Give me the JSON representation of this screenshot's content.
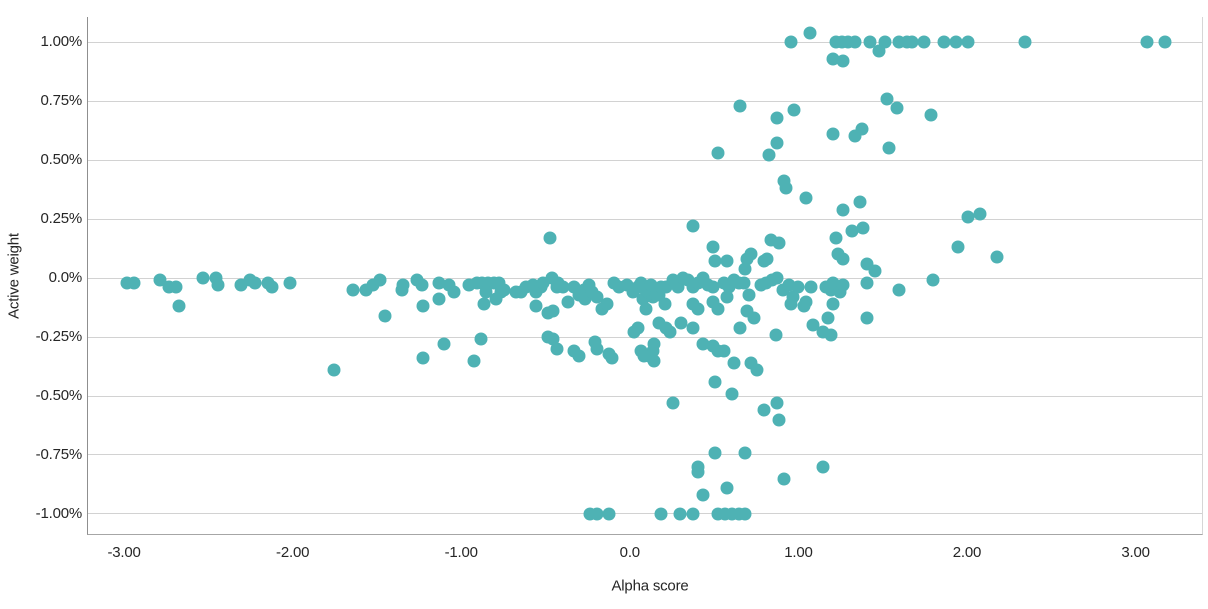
{
  "chart_data": {
    "type": "scatter",
    "title": "",
    "xlabel": "Alpha score",
    "ylabel": "Active weight",
    "xlim": [
      -3.22,
      3.4
    ],
    "ylim": [
      -1.089,
      1.106
    ],
    "grid": "horizontal-only",
    "legend": "none",
    "marker_color": "#4eb2b4",
    "marker_diameter_px": 13,
    "x_ticks": [
      {
        "value": -3,
        "label": "-3.00"
      },
      {
        "value": -2,
        "label": "-2.00"
      },
      {
        "value": -1,
        "label": "-1.00"
      },
      {
        "value": 0,
        "label": "0.0"
      },
      {
        "value": 1,
        "label": "1.00"
      },
      {
        "value": 2,
        "label": "2.00"
      },
      {
        "value": 3,
        "label": "3.00"
      }
    ],
    "y_ticks": [
      {
        "value": 1.0,
        "label": "1.00%"
      },
      {
        "value": 0.75,
        "label": "0.75%"
      },
      {
        "value": 0.5,
        "label": "0.50%"
      },
      {
        "value": 0.25,
        "label": "0.25%"
      },
      {
        "value": 0.0,
        "label": "0.0%"
      },
      {
        "value": -0.25,
        "label": "-0.25%"
      },
      {
        "value": -0.5,
        "label": "-0.50%"
      },
      {
        "value": -0.75,
        "label": "-0.75%"
      },
      {
        "value": -1.0,
        "label": "-1.00%"
      }
    ],
    "points": [
      [
        1.06,
        1.04
      ],
      [
        0.95,
        1.0
      ],
      [
        1.22,
        1.0
      ],
      [
        1.25,
        1.0
      ],
      [
        1.29,
        1.0
      ],
      [
        1.33,
        1.0
      ],
      [
        1.42,
        1.0
      ],
      [
        1.51,
        1.0
      ],
      [
        1.59,
        1.0
      ],
      [
        1.64,
        1.0
      ],
      [
        1.67,
        1.0
      ],
      [
        1.74,
        1.0
      ],
      [
        1.86,
        1.0
      ],
      [
        1.93,
        1.0
      ],
      [
        2.0,
        1.0
      ],
      [
        2.34,
        1.0
      ],
      [
        3.06,
        1.0
      ],
      [
        3.17,
        1.0
      ],
      [
        1.47,
        0.96
      ],
      [
        1.2,
        0.93
      ],
      [
        1.26,
        0.92
      ],
      [
        0.65,
        0.73
      ],
      [
        1.52,
        0.76
      ],
      [
        0.97,
        0.71
      ],
      [
        1.58,
        0.72
      ],
      [
        1.78,
        0.69
      ],
      [
        0.87,
        0.68
      ],
      [
        1.2,
        0.61
      ],
      [
        1.37,
        0.63
      ],
      [
        1.33,
        0.6
      ],
      [
        0.87,
        0.57
      ],
      [
        1.53,
        0.55
      ],
      [
        0.52,
        0.53
      ],
      [
        0.82,
        0.52
      ],
      [
        0.91,
        0.41
      ],
      [
        0.92,
        0.38
      ],
      [
        1.04,
        0.34
      ],
      [
        1.36,
        0.32
      ],
      [
        1.26,
        0.29
      ],
      [
        2.07,
        0.27
      ],
      [
        2.0,
        0.26
      ],
      [
        0.37,
        0.22
      ],
      [
        -0.48,
        0.17
      ],
      [
        1.31,
        0.2
      ],
      [
        1.38,
        0.21
      ],
      [
        1.22,
        0.17
      ],
      [
        0.49,
        0.13
      ],
      [
        1.94,
        0.13
      ],
      [
        2.17,
        0.09
      ],
      [
        1.23,
        0.1
      ],
      [
        1.26,
        0.08
      ],
      [
        1.4,
        0.06
      ],
      [
        1.45,
        0.03
      ],
      [
        0.83,
        0.16
      ],
      [
        0.88,
        0.15
      ],
      [
        0.71,
        0.1
      ],
      [
        0.79,
        0.07
      ],
      [
        0.69,
        0.08
      ],
      [
        0.81,
        0.08
      ],
      [
        0.5,
        0.07
      ],
      [
        0.57,
        0.07
      ],
      [
        0.68,
        0.04
      ],
      [
        1.79,
        -0.01
      ],
      [
        -2.99,
        -0.02
      ],
      [
        -2.95,
        -0.02
      ],
      [
        -2.79,
        -0.01
      ],
      [
        -2.74,
        -0.04
      ],
      [
        -2.7,
        -0.04
      ],
      [
        -2.68,
        -0.12
      ],
      [
        -2.54,
        0.0
      ],
      [
        -2.46,
        0.0
      ],
      [
        -2.45,
        -0.03
      ],
      [
        -2.31,
        -0.03
      ],
      [
        -2.26,
        -0.01
      ],
      [
        -2.23,
        -0.02
      ],
      [
        -2.15,
        -0.02
      ],
      [
        -2.13,
        -0.04
      ],
      [
        -2.02,
        -0.02
      ],
      [
        -1.65,
        -0.05
      ],
      [
        -1.57,
        -0.05
      ],
      [
        -1.53,
        -0.03
      ],
      [
        -1.49,
        -0.01
      ],
      [
        -1.46,
        -0.16
      ],
      [
        -1.36,
        -0.05
      ],
      [
        -1.35,
        -0.03
      ],
      [
        -1.27,
        -0.01
      ],
      [
        -1.24,
        -0.03
      ],
      [
        -1.14,
        -0.02
      ],
      [
        -1.08,
        -0.03
      ],
      [
        -1.05,
        -0.06
      ],
      [
        -1.23,
        -0.12
      ],
      [
        -1.14,
        -0.09
      ],
      [
        -0.96,
        -0.03
      ],
      [
        -0.91,
        -0.02
      ],
      [
        -0.88,
        -0.02
      ],
      [
        -0.85,
        -0.02
      ],
      [
        -0.81,
        -0.02
      ],
      [
        -0.78,
        -0.02
      ],
      [
        -0.86,
        -0.06
      ],
      [
        -0.77,
        -0.06
      ],
      [
        -0.75,
        -0.05
      ],
      [
        -0.87,
        -0.11
      ],
      [
        -0.8,
        -0.09
      ],
      [
        -0.68,
        -0.06
      ],
      [
        -0.65,
        -0.06
      ],
      [
        -0.62,
        -0.04
      ],
      [
        -0.58,
        -0.03
      ],
      [
        -0.56,
        -0.06
      ],
      [
        -0.53,
        -0.04
      ],
      [
        -0.52,
        -0.02
      ],
      [
        -0.47,
        0.0
      ],
      [
        -0.44,
        -0.04
      ],
      [
        -0.43,
        -0.02
      ],
      [
        -0.4,
        -0.04
      ],
      [
        -0.37,
        -0.1
      ],
      [
        -0.34,
        -0.04
      ],
      [
        -0.31,
        -0.07
      ],
      [
        -0.28,
        -0.05
      ],
      [
        -0.27,
        -0.09
      ],
      [
        -0.25,
        -0.03
      ],
      [
        -0.23,
        -0.06
      ],
      [
        -0.2,
        -0.08
      ],
      [
        -0.17,
        -0.13
      ],
      [
        -0.14,
        -0.11
      ],
      [
        -0.1,
        -0.02
      ],
      [
        -0.07,
        -0.04
      ],
      [
        -0.02,
        -0.03
      ],
      [
        0.01,
        -0.06
      ],
      [
        0.04,
        -0.04
      ],
      [
        0.07,
        -0.09
      ],
      [
        0.1,
        -0.06
      ],
      [
        0.13,
        -0.08
      ],
      [
        0.17,
        -0.07
      ],
      [
        0.2,
        -0.11
      ],
      [
        -0.56,
        -0.12
      ],
      [
        -0.49,
        -0.15
      ],
      [
        -0.46,
        -0.14
      ],
      [
        0.06,
        -0.02
      ],
      [
        0.09,
        -0.05
      ],
      [
        0.12,
        -0.03
      ],
      [
        0.15,
        -0.07
      ],
      [
        0.18,
        -0.04
      ],
      [
        0.21,
        -0.04
      ],
      [
        0.25,
        -0.01
      ],
      [
        0.28,
        -0.04
      ],
      [
        0.31,
        0.0
      ],
      [
        0.34,
        -0.01
      ],
      [
        0.37,
        -0.04
      ],
      [
        0.4,
        -0.02
      ],
      [
        0.43,
        0.0
      ],
      [
        0.46,
        -0.03
      ],
      [
        0.49,
        -0.04
      ],
      [
        0.55,
        -0.02
      ],
      [
        0.58,
        -0.04
      ],
      [
        0.61,
        -0.01
      ],
      [
        0.64,
        -0.02
      ],
      [
        0.67,
        -0.02
      ],
      [
        0.7,
        -0.07
      ],
      [
        0.77,
        -0.03
      ],
      [
        0.8,
        -0.02
      ],
      [
        0.84,
        -0.01
      ],
      [
        0.87,
        0.0
      ],
      [
        0.9,
        -0.05
      ],
      [
        0.94,
        -0.03
      ],
      [
        0.96,
        -0.08
      ],
      [
        0.99,
        -0.04
      ],
      [
        1.04,
        -0.1
      ],
      [
        1.07,
        -0.04
      ],
      [
        1.16,
        -0.04
      ],
      [
        1.19,
        -0.05
      ],
      [
        1.2,
        -0.02
      ],
      [
        1.24,
        -0.06
      ],
      [
        1.26,
        -0.03
      ],
      [
        1.4,
        -0.02
      ],
      [
        1.59,
        -0.05
      ],
      [
        -1.11,
        -0.28
      ],
      [
        -0.89,
        -0.26
      ],
      [
        -0.49,
        -0.25
      ],
      [
        -0.46,
        -0.26
      ],
      [
        -0.44,
        -0.3
      ],
      [
        -0.34,
        -0.31
      ],
      [
        -0.31,
        -0.33
      ],
      [
        -0.21,
        -0.27
      ],
      [
        -0.2,
        -0.3
      ],
      [
        -0.13,
        -0.32
      ],
      [
        -0.11,
        -0.34
      ],
      [
        0.02,
        -0.23
      ],
      [
        0.04,
        -0.21
      ],
      [
        0.11,
        -0.33
      ],
      [
        0.13,
        -0.31
      ],
      [
        0.14,
        -0.35
      ],
      [
        -1.23,
        -0.34
      ],
      [
        -0.93,
        -0.35
      ],
      [
        0.09,
        -0.13
      ],
      [
        0.17,
        -0.19
      ],
      [
        0.21,
        -0.21
      ],
      [
        0.23,
        -0.23
      ],
      [
        0.3,
        -0.19
      ],
      [
        0.37,
        -0.21
      ],
      [
        0.37,
        -0.11
      ],
      [
        0.4,
        -0.13
      ],
      [
        0.49,
        -0.1
      ],
      [
        0.52,
        -0.13
      ],
      [
        0.57,
        -0.08
      ],
      [
        0.69,
        -0.14
      ],
      [
        0.73,
        -0.17
      ],
      [
        0.65,
        -0.21
      ],
      [
        0.95,
        -0.11
      ],
      [
        1.03,
        -0.12
      ],
      [
        1.08,
        -0.2
      ],
      [
        1.14,
        -0.23
      ],
      [
        1.17,
        -0.17
      ],
      [
        1.2,
        -0.11
      ],
      [
        1.19,
        -0.24
      ],
      [
        1.4,
        -0.17
      ],
      [
        0.86,
        -0.24
      ],
      [
        0.06,
        -0.31
      ],
      [
        0.08,
        -0.33
      ],
      [
        0.14,
        -0.28
      ],
      [
        0.43,
        -0.28
      ],
      [
        0.49,
        -0.29
      ],
      [
        0.52,
        -0.31
      ],
      [
        0.55,
        -0.31
      ],
      [
        0.61,
        -0.36
      ],
      [
        0.71,
        -0.36
      ],
      [
        -1.76,
        -0.39
      ],
      [
        0.5,
        -0.44
      ],
      [
        0.75,
        -0.39
      ],
      [
        0.25,
        -0.53
      ],
      [
        0.6,
        -0.49
      ],
      [
        0.79,
        -0.56
      ],
      [
        0.87,
        -0.53
      ],
      [
        0.88,
        -0.6
      ],
      [
        0.5,
        -0.74
      ],
      [
        0.68,
        -0.74
      ],
      [
        0.4,
        -0.8
      ],
      [
        0.4,
        -0.82
      ],
      [
        0.91,
        -0.85
      ],
      [
        1.14,
        -0.8
      ],
      [
        0.57,
        -0.89
      ],
      [
        0.43,
        -0.92
      ],
      [
        -0.24,
        -1.0
      ],
      [
        -0.2,
        -1.0
      ],
      [
        -0.13,
        -1.0
      ],
      [
        0.18,
        -1.0
      ],
      [
        0.29,
        -1.0
      ],
      [
        0.37,
        -1.0
      ],
      [
        0.52,
        -1.0
      ],
      [
        0.56,
        -1.0
      ],
      [
        0.6,
        -1.0
      ],
      [
        0.64,
        -1.0
      ],
      [
        0.68,
        -1.0
      ]
    ]
  }
}
